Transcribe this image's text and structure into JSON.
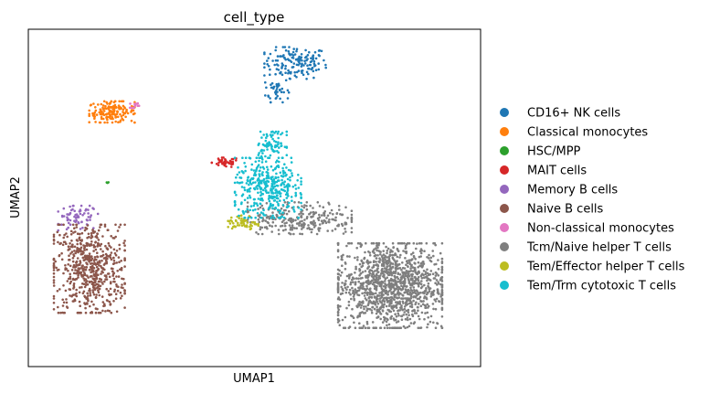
{
  "chart_data": {
    "type": "scatter",
    "title": "cell_type",
    "xlabel": "UMAP1",
    "ylabel": "UMAP2",
    "x_ticks": false,
    "y_ticks": false,
    "grid": false,
    "xlim": [
      0,
      10
    ],
    "ylim": [
      0,
      10
    ],
    "legend_position": "right",
    "series": [
      {
        "name": "CD16+ NK cells",
        "color": "#1f77b4",
        "clusters": [
          {
            "center": [
              5.9,
              9.0
            ],
            "spread": [
              0.65,
              0.45
            ],
            "n": 150
          },
          {
            "center": [
              5.5,
              8.2
            ],
            "spread": [
              0.25,
              0.35
            ],
            "n": 40
          }
        ]
      },
      {
        "name": "Classical monocytes",
        "color": "#ff7f0e",
        "clusters": [
          {
            "center": [
              1.85,
              7.55
            ],
            "spread": [
              0.48,
              0.3
            ],
            "n": 160
          }
        ]
      },
      {
        "name": "HSC/MPP",
        "color": "#2ca02c",
        "clusters": [
          {
            "center": [
              1.75,
              5.45
            ],
            "spread": [
              0.05,
              0.06
            ],
            "n": 4
          }
        ]
      },
      {
        "name": "MAIT cells",
        "color": "#d62728",
        "clusters": [
          {
            "center": [
              4.35,
              6.05
            ],
            "spread": [
              0.28,
              0.14
            ],
            "n": 45
          }
        ]
      },
      {
        "name": "Memory B cells",
        "color": "#9467bd",
        "clusters": [
          {
            "center": [
              1.1,
              4.4
            ],
            "spread": [
              0.42,
              0.35
            ],
            "n": 70
          }
        ]
      },
      {
        "name": "Naive B cells",
        "color": "#8c564b",
        "clusters": [
          {
            "center": [
              1.35,
              2.9
            ],
            "spread": [
              0.75,
              1.25
            ],
            "n": 620
          }
        ]
      },
      {
        "name": "Non-classical monocytes",
        "color": "#e377c2",
        "clusters": [
          {
            "center": [
              2.35,
              7.75
            ],
            "spread": [
              0.1,
              0.08
            ],
            "n": 12
          }
        ]
      },
      {
        "name": "Tcm/Naive helper T cells",
        "color": "#7f7f7f",
        "clusters": [
          {
            "center": [
              8.0,
              2.4
            ],
            "spread": [
              1.1,
              1.2
            ],
            "n": 1250
          },
          {
            "center": [
              6.0,
              4.4
            ],
            "spread": [
              1.1,
              0.45
            ],
            "n": 260
          }
        ]
      },
      {
        "name": "Tem/Effector helper T cells",
        "color": "#bcbd22",
        "clusters": [
          {
            "center": [
              4.75,
              4.25
            ],
            "spread": [
              0.32,
              0.22
            ],
            "n": 55
          }
        ]
      },
      {
        "name": "Tem/Trm cytotoxic T cells",
        "color": "#17becf",
        "clusters": [
          {
            "center": [
              5.3,
              5.3
            ],
            "spread": [
              0.7,
              0.85
            ],
            "n": 380
          },
          {
            "center": [
              5.4,
              6.6
            ],
            "spread": [
              0.3,
              0.35
            ],
            "n": 80
          }
        ]
      }
    ]
  }
}
